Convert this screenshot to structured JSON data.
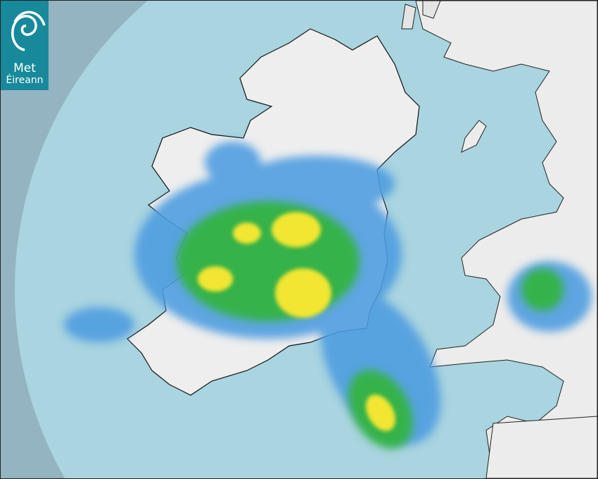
{
  "logo": {
    "line1": "Met",
    "line2": "Éireann"
  },
  "colors": {
    "outside_coverage": "#94b4c2",
    "radar_coverage": "#a9d4e0",
    "land": "#eeeeee",
    "rain_light": "#4f9de0",
    "rain_moderate": "#36b24a",
    "rain_heavy": "#f2e630",
    "rain_very_heavy": "#f0a020",
    "logo_background": "#17899a"
  },
  "legend": null
}
